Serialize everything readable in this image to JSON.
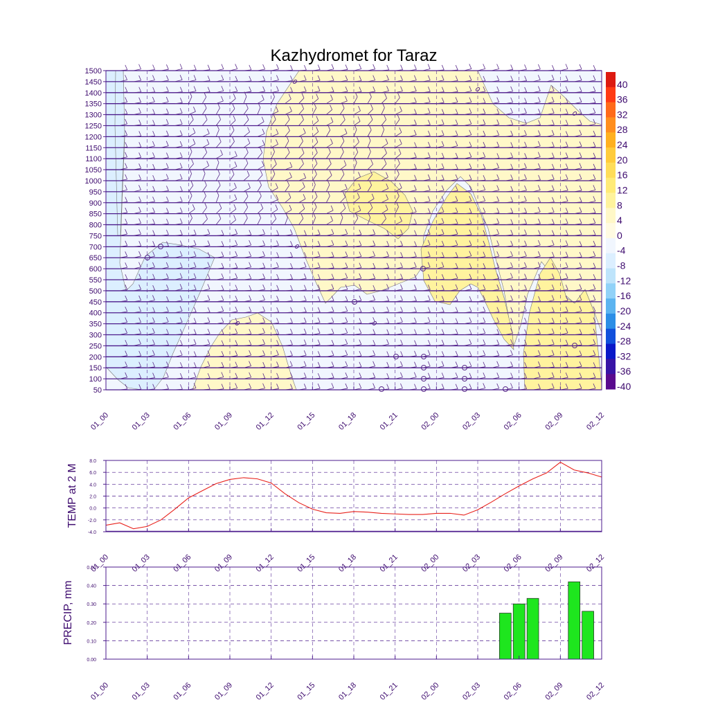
{
  "title": "Kazhydromet for Taraz",
  "time_labels": [
    "01_00",
    "01_03",
    "01_06",
    "01_09",
    "01_12",
    "01_15",
    "01_18",
    "01_21",
    "02_00",
    "02_03",
    "02_06",
    "02_09",
    "02_12"
  ],
  "colors": {
    "title": "#3d0a6e",
    "frame": "#4b1a8c",
    "barb": "#5a2a8a",
    "temp_line": "#e8201a",
    "precip_bar": "#1ee61e",
    "contour_line": "#777777"
  },
  "chart_data": [
    {
      "type": "heatmap",
      "title": "Kazhydromet for Taraz",
      "xlabel": "",
      "ylabel": "",
      "x_ticks": [
        "01_00",
        "01_03",
        "01_06",
        "01_09",
        "01_12",
        "01_15",
        "01_18",
        "01_21",
        "02_00",
        "02_03",
        "02_06",
        "02_09",
        "02_12"
      ],
      "y_ticks": [
        50,
        100,
        150,
        200,
        250,
        300,
        350,
        400,
        450,
        500,
        550,
        600,
        650,
        700,
        750,
        800,
        850,
        900,
        950,
        1000,
        1050,
        1100,
        1150,
        1200,
        1250,
        1300,
        1350,
        1400,
        1450,
        1500
      ],
      "ylim": [
        50,
        1500
      ],
      "colorbar": {
        "labels": [
          40,
          36,
          32,
          28,
          24,
          20,
          16,
          12,
          8,
          4,
          0,
          -4,
          -8,
          -12,
          -16,
          -20,
          -24,
          -28,
          -32,
          -36,
          -40
        ],
        "colors": [
          "#dd1a10",
          "#ff3a14",
          "#ff6a1a",
          "#ff8e1e",
          "#ffb020",
          "#ffcb3c",
          "#ffdd5a",
          "#ffeb78",
          "#fff39e",
          "#fff8c8",
          "#fffbe2",
          "#f1f6fe",
          "#dcefff",
          "#bee4fb",
          "#91d2f8",
          "#5bb4f0",
          "#2c8ee6",
          "#1150dc",
          "#0a18c8",
          "#3814a6",
          "#5a0a8e"
        ],
        "placement": "right"
      },
      "fields": [
        {
          "name": "",
          "range": "-8 to -4",
          "color": "#dcefff"
        },
        {
          "name": "",
          "range": "-4 to 0",
          "color": "#f1f6fe"
        },
        {
          "name": "",
          "range": "0 to 4",
          "color": "#fff8c8"
        },
        {
          "name": "",
          "range": "4 to 8",
          "color": "#fff39e"
        }
      ]
    },
    {
      "type": "line",
      "title": "",
      "xlabel": "",
      "ylabel": "TEMP at 2 M",
      "x": [
        "01_00",
        "01_01",
        "01_02",
        "01_03",
        "01_04",
        "01_05",
        "01_06",
        "01_07",
        "01_08",
        "01_09",
        "01_10",
        "01_11",
        "01_12",
        "01_13",
        "01_14",
        "01_15",
        "01_16",
        "01_17",
        "01_18",
        "01_19",
        "01_20",
        "01_21",
        "01_22",
        "01_23",
        "02_00",
        "02_01",
        "02_02",
        "02_03",
        "02_04",
        "02_05",
        "02_06",
        "02_07",
        "02_08",
        "02_09",
        "02_10",
        "02_11",
        "02_12"
      ],
      "series": [
        {
          "values": [
            -2.9,
            -2.5,
            -3.5,
            -3.1,
            -2.0,
            -0.2,
            1.7,
            2.9,
            4.1,
            4.8,
            5.1,
            4.9,
            4.2,
            2.4,
            0.9,
            -0.2,
            -0.8,
            -0.9,
            -0.6,
            -0.7,
            -0.9,
            -1.0,
            -1.1,
            -1.1,
            -0.9,
            -0.9,
            -1.2,
            -0.3,
            1.0,
            2.4,
            3.7,
            4.9,
            5.9,
            7.7,
            6.4,
            5.9,
            5.2
          ]
        }
      ],
      "y_ticks": [
        "-4.0",
        "-2.0",
        "0.0",
        "2.0",
        "4.0",
        "6.0",
        "8.0"
      ],
      "ylim": [
        -4,
        8
      ],
      "grid": true
    },
    {
      "type": "bar",
      "title": "",
      "xlabel": "",
      "ylabel": "PRECIP, mm",
      "categories": [
        "02_04",
        "02_05",
        "02_06",
        "02_07",
        "02_08",
        "02_09",
        "02_10",
        "02_11"
      ],
      "values": [
        0.0,
        0.25,
        0.3,
        0.33,
        0.0,
        0.0,
        0.42,
        0.26
      ],
      "y_ticks": [
        "0.00",
        "0.10",
        "0.20",
        "0.30",
        "0.40",
        "0.50"
      ],
      "ylim": [
        0,
        0.5
      ],
      "grid": true
    }
  ]
}
